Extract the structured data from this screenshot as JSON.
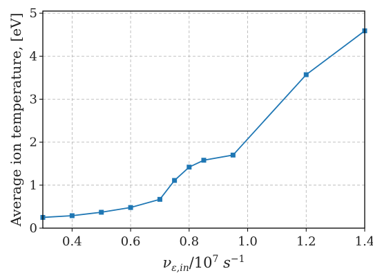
{
  "chart_data": {
    "type": "line",
    "title": "",
    "xlabel": {
      "base": "ν",
      "sub": "ε,in",
      "mid": "/10",
      "sup_exp": "7",
      "unit": " s",
      "unit_exp": "−1"
    },
    "ylabel": "Average ion temperature, [eV]",
    "xlim": [
      0.3,
      1.4
    ],
    "ylim": [
      0,
      5.05
    ],
    "xticks": [
      0.4,
      0.6,
      0.8,
      1.0,
      1.2,
      1.4
    ],
    "xtick_labels": [
      "0.4",
      "0.6",
      "0.8",
      "1.0",
      "1.2",
      "1.4"
    ],
    "yticks": [
      0,
      1,
      2,
      3,
      4,
      5
    ],
    "ytick_labels": [
      "0",
      "1",
      "2",
      "3",
      "4",
      "5"
    ],
    "grid": true,
    "grid_style": "dashed",
    "series": [
      {
        "color": "#1f77b4",
        "marker": "square",
        "x": [
          0.3,
          0.4,
          0.5,
          0.6,
          0.7,
          0.75,
          0.8,
          0.85,
          0.95,
          1.2,
          1.4
        ],
        "y": [
          0.25,
          0.29,
          0.37,
          0.48,
          0.67,
          1.11,
          1.42,
          1.58,
          1.7,
          3.57,
          4.59
        ]
      }
    ]
  }
}
